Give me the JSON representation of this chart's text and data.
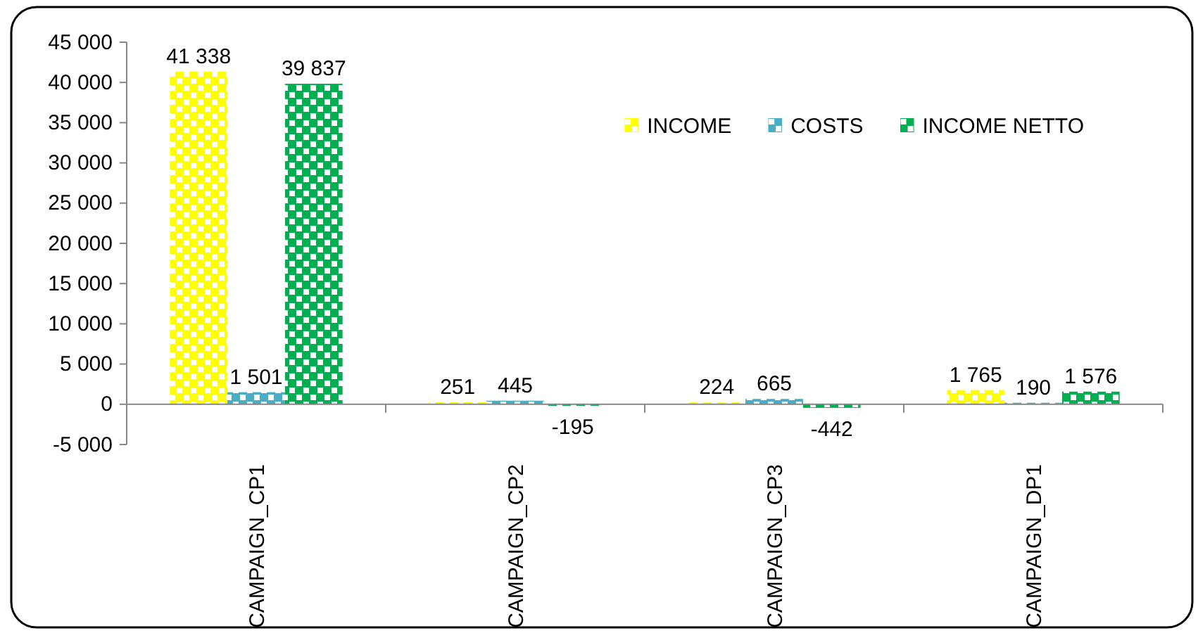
{
  "chart_data": {
    "type": "bar",
    "categories": [
      "CAMPAIGN_CP1",
      "CAMPAIGN_CP2",
      "CAMPAIGN_CP3",
      "CAMPAIGN_DP1"
    ],
    "series": [
      {
        "name": "INCOME",
        "color": "#ffff00",
        "values": [
          41338,
          251,
          224,
          1765
        ],
        "value_labels": [
          "41 338",
          "251",
          "224",
          "1 765"
        ]
      },
      {
        "name": "COSTS",
        "color": "#4bacc6",
        "values": [
          1501,
          445,
          665,
          190
        ],
        "value_labels": [
          "1 501",
          "445",
          "665",
          "190"
        ]
      },
      {
        "name": "INCOME NETTO",
        "color": "#00b050",
        "values": [
          39837,
          -195,
          -442,
          1576
        ],
        "value_labels": [
          "39 837",
          "-195",
          "-442",
          "1 576"
        ]
      }
    ],
    "ylim": [
      -5000,
      45000
    ],
    "yticks": [
      {
        "value": -5000,
        "label": "-5 000"
      },
      0,
      {
        "value": 5000,
        "label": "5 000"
      },
      {
        "value": 10000,
        "label": "10 000"
      },
      {
        "value": 15000,
        "label": "15 000"
      },
      {
        "value": 20000,
        "label": "20 000"
      },
      {
        "value": 25000,
        "label": "25 000"
      },
      {
        "value": 30000,
        "label": "30 000"
      },
      {
        "value": 35000,
        "label": "35 000"
      },
      {
        "value": 40000,
        "label": "40 000"
      },
      {
        "value": 45000,
        "label": "45 000"
      }
    ],
    "legend": "top right"
  }
}
